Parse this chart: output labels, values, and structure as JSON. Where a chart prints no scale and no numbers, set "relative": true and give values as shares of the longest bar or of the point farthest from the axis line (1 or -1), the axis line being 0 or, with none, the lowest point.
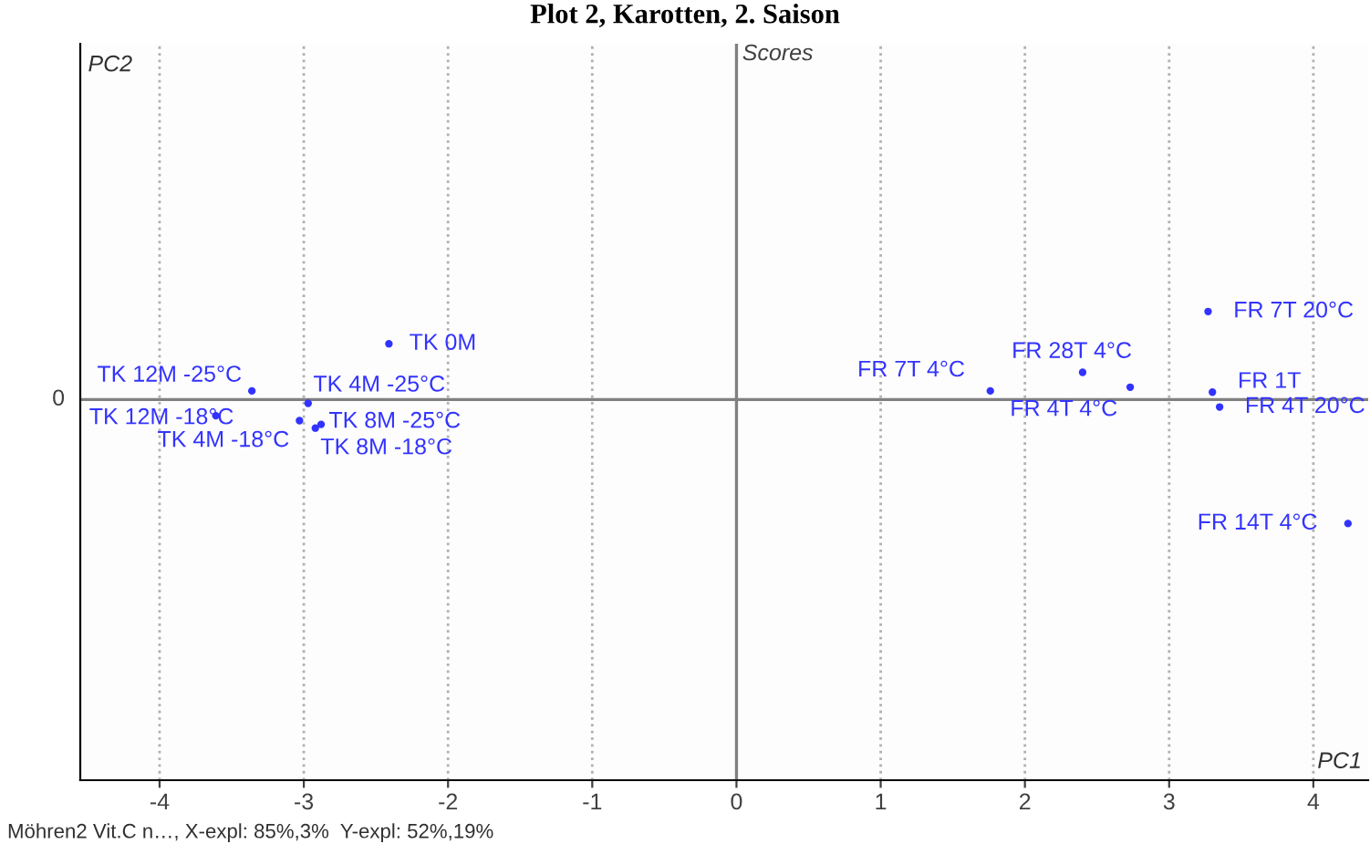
{
  "chart_data": {
    "type": "scatter",
    "title": "Plot 2, Karotten, 2. Saison",
    "subtitle": "Scores",
    "relative": true,
    "xlim": [
      -4.55,
      4.38
    ],
    "xticks": [
      -4,
      -3,
      -2,
      -1,
      0,
      1,
      2,
      3,
      4
    ],
    "grid": "x",
    "marker": "circle",
    "ref_lines": [
      {
        "axis": "x",
        "value": 0,
        "color": "#808080"
      },
      {
        "axis": "y",
        "value": 0,
        "color": "#808080",
        "label": "0"
      }
    ],
    "series": [
      {
        "color": "#3333ff",
        "x": [
          -2.41,
          -3.36,
          -3.61,
          -2.97,
          -3.03,
          -2.88,
          -2.92,
          1.76,
          2.4,
          2.73,
          3.27,
          3.3,
          3.35,
          4.24
        ],
        "values": [
          0.45,
          0.07,
          -0.13,
          -0.03,
          -0.17,
          -0.2,
          -0.23,
          0.07,
          0.22,
          0.1,
          0.71,
          0.06,
          -0.06,
          -1
        ]
      }
    ],
    "annotations": [
      {
        "text": "TK 0M",
        "x": -2.41,
        "y": 0.45
      },
      {
        "text": "TK 12M -25°C",
        "x": -3.36,
        "y": 0.07
      },
      {
        "text": "TK 12M -18°C",
        "x": -3.61,
        "y": -0.13
      },
      {
        "text": "TK 4M -25°C",
        "x": -2.97,
        "y": -0.03
      },
      {
        "text": "TK 4M -18°C",
        "x": -3.03,
        "y": -0.17
      },
      {
        "text": "TK 8M -25°C",
        "x": -2.88,
        "y": -0.2
      },
      {
        "text": "TK 8M -18°C",
        "x": -2.92,
        "y": -0.23
      },
      {
        "text": "FR 7T 4°C",
        "x": 1.76,
        "y": 0.07
      },
      {
        "text": "FR 28T 4°C",
        "x": 2.4,
        "y": 0.22
      },
      {
        "text": "FR 4T 4°C",
        "x": 2.73,
        "y": 0.1
      },
      {
        "text": "FR 7T 20°C",
        "x": 3.27,
        "y": 0.71
      },
      {
        "text": "FR 1T",
        "x": 3.3,
        "y": 0.06
      },
      {
        "text": "FR 4T 20°C",
        "x": 3.35,
        "y": -0.06
      },
      {
        "text": "FR 14T 4°C",
        "x": 4.24,
        "y": -1
      },
      "PC2",
      "PC1",
      "Möhren2 Vit.C n…, X-expl: 85%,3%  Y-expl: 52%,19%"
    ]
  }
}
